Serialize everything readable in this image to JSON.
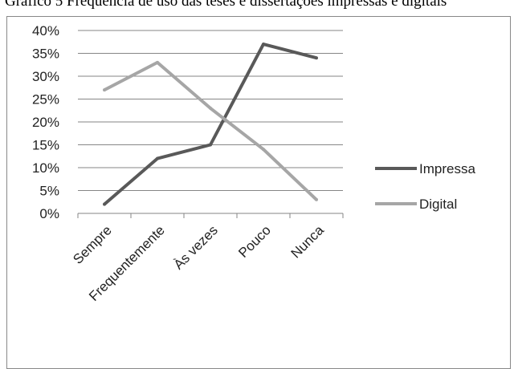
{
  "title": "Gráfico 5 Frequência de uso das teses e dissertações impressas e digitais",
  "chart_data": {
    "type": "line",
    "categories": [
      "Sempre",
      "Frequentemente",
      "Às vezes",
      "Pouco",
      "Nunca"
    ],
    "ylim": [
      0,
      40
    ],
    "y_ticks": [
      "0%",
      "5%",
      "10%",
      "15%",
      "20%",
      "25%",
      "30%",
      "35%",
      "40%"
    ],
    "grid": true,
    "legend_position": "right",
    "series": [
      {
        "name": "Impressa",
        "color": "#595959",
        "values": [
          2,
          12,
          15,
          37,
          34
        ]
      },
      {
        "name": "Digital",
        "color": "#a6a6a6",
        "values": [
          27,
          33,
          23,
          14,
          3
        ]
      }
    ]
  }
}
